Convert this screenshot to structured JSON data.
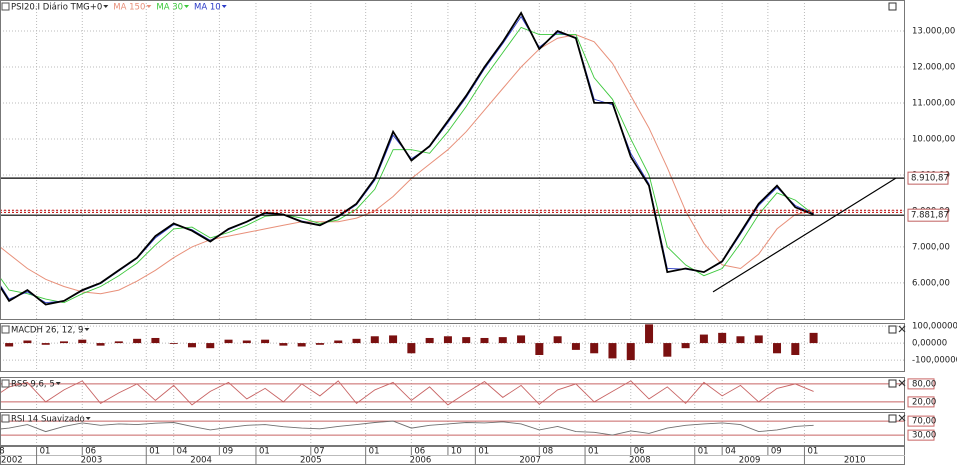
{
  "chart_data": [
    {
      "type": "line",
      "title": "PSI20.I Diário TMG+0",
      "x": [
        "2002-08",
        "2002-10",
        "2002-12",
        "2003-02",
        "2003-04",
        "2003-06",
        "2003-08",
        "2003-10",
        "2003-12",
        "2004-02",
        "2004-04",
        "2004-06",
        "2004-08",
        "2004-10",
        "2004-12",
        "2005-02",
        "2005-04",
        "2005-06",
        "2005-08",
        "2005-10",
        "2005-12",
        "2006-02",
        "2006-04",
        "2006-06",
        "2006-08",
        "2006-10",
        "2006-12",
        "2007-02",
        "2007-04",
        "2007-06",
        "2007-08",
        "2007-10",
        "2007-12",
        "2008-02",
        "2008-04",
        "2008-06",
        "2008-08",
        "2008-10",
        "2008-12",
        "2009-02",
        "2009-04",
        "2009-06",
        "2009-08",
        "2009-10",
        "2009-12",
        "2010-02"
      ],
      "values": [
        6300,
        5500,
        5800,
        5400,
        5500,
        5800,
        6000,
        6350,
        6700,
        7300,
        7650,
        7450,
        7150,
        7500,
        7700,
        7950,
        7900,
        7700,
        7600,
        7850,
        8200,
        8900,
        10200,
        9400,
        9800,
        10500,
        11200,
        12000,
        12700,
        13500,
        12500,
        13000,
        12800,
        11000,
        11000,
        9500,
        8700,
        6300,
        6400,
        6300,
        6600,
        7400,
        8200,
        8700,
        8100,
        7900
      ],
      "color": "#000000",
      "series": [
        {
          "name": "MA 150",
          "color": "#e8907a",
          "values": [
            7200,
            6800,
            6400,
            6100,
            5900,
            5750,
            5700,
            5800,
            6050,
            6350,
            6700,
            7000,
            7200,
            7300,
            7400,
            7500,
            7600,
            7700,
            7700,
            7700,
            7800,
            8000,
            8400,
            8900,
            9300,
            9700,
            10200,
            10800,
            11400,
            12000,
            12500,
            12800,
            12900,
            12700,
            12100,
            11200,
            10300,
            9200,
            8000,
            7100,
            6500,
            6400,
            6800,
            7500,
            7900,
            8000
          ]
        },
        {
          "name": "MA 30",
          "color": "#3cc83c",
          "values": [
            6500,
            5800,
            5700,
            5550,
            5450,
            5700,
            5900,
            6200,
            6550,
            7050,
            7500,
            7550,
            7250,
            7400,
            7600,
            7850,
            7900,
            7800,
            7650,
            7750,
            8050,
            8600,
            9700,
            9700,
            9600,
            10200,
            10900,
            11700,
            12400,
            13100,
            12900,
            12900,
            12900,
            11700,
            11100,
            10000,
            9000,
            7000,
            6500,
            6200,
            6400,
            7100,
            7900,
            8500,
            8300,
            7900
          ]
        },
        {
          "name": "MA 10",
          "color": "#2c3cc8",
          "values": [
            6350,
            5550,
            5750,
            5450,
            5500,
            5780,
            5980,
            6330,
            6680,
            7250,
            7620,
            7480,
            7180,
            7480,
            7690,
            7930,
            7900,
            7720,
            7610,
            7830,
            8170,
            8850,
            10100,
            9450,
            9780,
            10450,
            11150,
            11950,
            12650,
            13400,
            12550,
            12950,
            12820,
            11100,
            10950,
            9600,
            8750,
            6400,
            6380,
            6300,
            6580,
            7350,
            8150,
            8650,
            8150,
            7920
          ]
        }
      ],
      "xlim": [
        "2002-09",
        "2010-12"
      ],
      "xticks": [
        {
          "value": "2002-08",
          "label": "08"
        },
        {
          "value": "2003-01",
          "label": "01"
        },
        {
          "value": "2003-06",
          "label": "06"
        },
        {
          "value": "2004-01",
          "label": "01"
        },
        {
          "value": "2004-04",
          "label": "04"
        },
        {
          "value": "2004-09",
          "label": "09"
        },
        {
          "value": "2005-01",
          "label": "01"
        },
        {
          "value": "2005-07",
          "label": "07"
        },
        {
          "value": "2006-01",
          "label": "01"
        },
        {
          "value": "2006-06",
          "label": "06"
        },
        {
          "value": "2006-10",
          "label": "10"
        },
        {
          "value": "2007-01",
          "label": "01"
        },
        {
          "value": "2007-08",
          "label": "08"
        },
        {
          "value": "2008-01",
          "label": "01"
        },
        {
          "value": "2008-06",
          "label": "06"
        },
        {
          "value": "2009-01",
          "label": "01"
        },
        {
          "value": "2009-04",
          "label": "04"
        },
        {
          "value": "2009-09",
          "label": "09"
        },
        {
          "value": "2010-01",
          "label": "01"
        }
      ],
      "years": [
        2002,
        2003,
        2004,
        2005,
        2006,
        2007,
        2008,
        2009,
        2010
      ],
      "ylim": [
        4970,
        13860
      ],
      "yticks": [
        {
          "value": 6000,
          "label": "6.000,00"
        },
        {
          "value": 7000,
          "label": "7.000,00"
        },
        {
          "value": 8000,
          "label": "8.000,00"
        },
        {
          "value": 9000,
          "label": "9.000,00"
        },
        {
          "value": 10000,
          "label": "10.000,00"
        },
        {
          "value": 11000,
          "label": "11.000,00"
        },
        {
          "value": 12000,
          "label": "12.000,00"
        },
        {
          "value": 13000,
          "label": "13.000,00"
        }
      ],
      "grid": true,
      "levels": [
        {
          "value": 8910.87,
          "label": "8.910,87",
          "color": "#000000"
        },
        {
          "value": 7881.87,
          "label": "7.881,87",
          "color": "#000000"
        },
        {
          "value": 8020,
          "color": "#c00000",
          "dash": true
        },
        {
          "value": 7960,
          "color": "#c00000",
          "dash": true
        }
      ],
      "trendline": {
        "x": [
          "2009-03",
          "2010-11"
        ],
        "values": [
          5750,
          8910
        ],
        "color": "#000000"
      }
    },
    {
      "type": "bar",
      "title": "MACDH 26, 12, 9",
      "values": [
        5,
        -20,
        15,
        -10,
        10,
        20,
        -15,
        10,
        25,
        30,
        -5,
        -25,
        -30,
        20,
        15,
        20,
        -15,
        -20,
        -10,
        15,
        25,
        40,
        45,
        -60,
        30,
        40,
        35,
        30,
        35,
        45,
        -70,
        40,
        -40,
        -60,
        -90,
        -100,
        110,
        -80,
        -30,
        50,
        60,
        40,
        45,
        -60,
        -70,
        60
      ],
      "color": "#7a1010",
      "ylim": [
        -170,
        118
      ],
      "yticks": [
        {
          "value": 100,
          "label": "100,00000"
        },
        {
          "value": 0,
          "label": "0,00000"
        },
        {
          "value": -100,
          "label": "-100,00000"
        }
      ],
      "grid": true
    },
    {
      "type": "line",
      "title": "RSS 9,6, 5",
      "values": [
        30,
        70,
        85,
        20,
        60,
        90,
        15,
        50,
        80,
        25,
        75,
        10,
        55,
        85,
        30,
        65,
        20,
        80,
        40,
        90,
        15,
        60,
        85,
        25,
        70,
        10,
        50,
        88,
        35,
        75,
        12,
        60,
        80,
        20,
        55,
        90,
        30,
        70,
        15,
        85,
        40,
        75,
        20,
        65,
        80,
        55
      ],
      "color": "#c86464",
      "ylim": [
        -7,
        103
      ],
      "yticks": [
        {
          "value": 80,
          "label": "80,00"
        },
        {
          "value": 20,
          "label": "20,00"
        }
      ],
      "grid": true,
      "grid_color": "#c86464"
    },
    {
      "type": "line",
      "title": "RSI 14 Suavizado",
      "values": [
        45,
        50,
        60,
        40,
        55,
        65,
        58,
        62,
        60,
        64,
        66,
        55,
        45,
        52,
        58,
        60,
        54,
        50,
        48,
        55,
        60,
        66,
        70,
        50,
        58,
        62,
        66,
        65,
        68,
        62,
        45,
        55,
        40,
        38,
        30,
        42,
        35,
        50,
        58,
        62,
        65,
        60,
        40,
        45,
        55,
        58
      ],
      "color": "#707070",
      "ylim": [
        -1,
        96
      ],
      "yticks": [
        {
          "value": 70,
          "label": "70,00"
        },
        {
          "value": 30,
          "label": "30,00"
        }
      ],
      "grid": true,
      "grid_color": "#c86464"
    }
  ]
}
